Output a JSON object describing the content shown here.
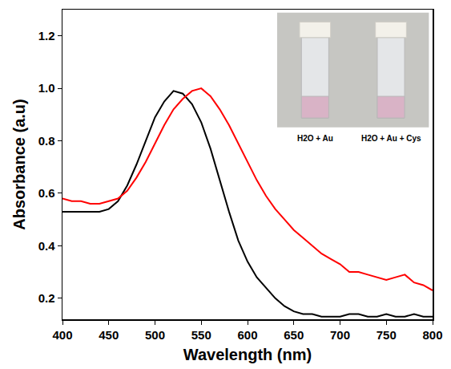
{
  "chart_data": {
    "type": "line",
    "x_label": "Wavelength (nm)",
    "y_label": "Absorbance (a.u)",
    "x": [
      400,
      410,
      420,
      430,
      440,
      450,
      460,
      470,
      480,
      490,
      500,
      510,
      520,
      530,
      540,
      550,
      560,
      570,
      580,
      590,
      600,
      610,
      620,
      630,
      640,
      650,
      660,
      670,
      680,
      690,
      700,
      710,
      720,
      730,
      740,
      750,
      760,
      770,
      780,
      790,
      800
    ],
    "series": [
      {
        "color": "#000000",
        "values": [
          0.53,
          0.53,
          0.53,
          0.53,
          0.53,
          0.54,
          0.57,
          0.63,
          0.71,
          0.8,
          0.89,
          0.95,
          0.99,
          0.98,
          0.94,
          0.87,
          0.77,
          0.65,
          0.53,
          0.42,
          0.34,
          0.28,
          0.24,
          0.2,
          0.17,
          0.15,
          0.14,
          0.14,
          0.13,
          0.13,
          0.13,
          0.14,
          0.14,
          0.13,
          0.13,
          0.14,
          0.13,
          0.13,
          0.14,
          0.13,
          0.13
        ]
      },
      {
        "color": "#ff0000",
        "values": [
          0.58,
          0.57,
          0.57,
          0.56,
          0.56,
          0.57,
          0.58,
          0.61,
          0.66,
          0.72,
          0.79,
          0.86,
          0.92,
          0.96,
          0.99,
          1.0,
          0.97,
          0.92,
          0.86,
          0.79,
          0.72,
          0.65,
          0.59,
          0.54,
          0.5,
          0.46,
          0.43,
          0.4,
          0.37,
          0.35,
          0.33,
          0.3,
          0.3,
          0.29,
          0.28,
          0.27,
          0.28,
          0.29,
          0.26,
          0.25,
          0.23
        ]
      }
    ],
    "xlim": [
      400,
      800
    ],
    "xticks": [
      400,
      450,
      500,
      550,
      600,
      650,
      700,
      750,
      800
    ],
    "ylim": [
      0.12,
      1.3
    ],
    "yticks": [
      0.2,
      0.4,
      0.6,
      0.8,
      {
        "value": 1,
        "label": "1.0"
      },
      1.2
    ],
    "grid": false,
    "annotations": [
      "H2O + Au",
      "H2O + Au + Cys"
    ]
  }
}
